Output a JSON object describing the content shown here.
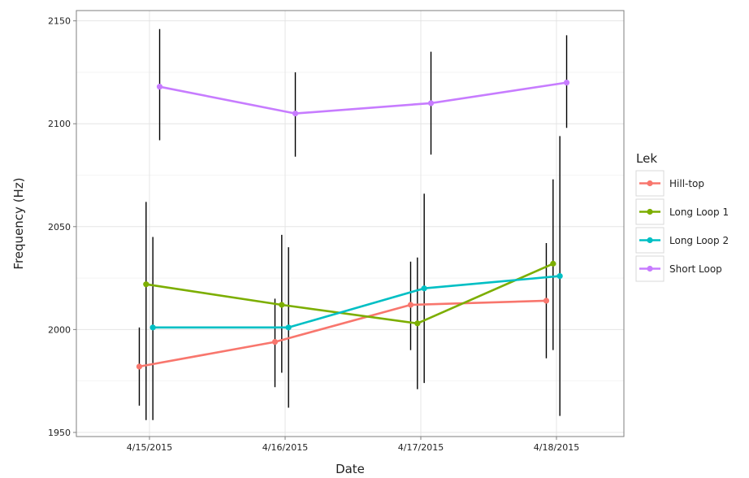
{
  "chart_data": {
    "type": "line",
    "xlabel": "Date",
    "ylabel": "Frequency (Hz)",
    "x": [
      "4/15/2015",
      "4/16/2015",
      "4/17/2015",
      "4/18/2015"
    ],
    "ylim": [
      1948,
      2155
    ],
    "yticks": [
      1950,
      2000,
      2050,
      2100,
      2150
    ],
    "grid": true,
    "legend": {
      "title": "Lek",
      "position": "right"
    },
    "series": [
      {
        "name": "Hill-top",
        "color": "#F8766D",
        "dodge": -0.075,
        "y": [
          1982,
          1994,
          2012,
          2014
        ],
        "lower": [
          1963,
          1972,
          1990,
          1986
        ],
        "upper": [
          2001,
          2015,
          2033,
          2042
        ]
      },
      {
        "name": "Long Loop 1",
        "color": "#7CAE00",
        "dodge": -0.025,
        "y": [
          2022,
          2012,
          2003,
          2032
        ],
        "lower": [
          1956,
          1979,
          1971,
          1990
        ],
        "upper": [
          2062,
          2046,
          2035,
          2073
        ]
      },
      {
        "name": "Long Loop 2",
        "color": "#00BFC4",
        "dodge": 0.025,
        "y": [
          2001,
          2001,
          2020,
          2026
        ],
        "lower": [
          1956,
          1962,
          1974,
          1958
        ],
        "upper": [
          2045,
          2040,
          2066,
          2094
        ]
      },
      {
        "name": "Short Loop",
        "color": "#C77CFF",
        "dodge": 0.075,
        "y": [
          2118,
          2105,
          2110,
          2120
        ],
        "lower": [
          2092,
          2084,
          2085,
          2098
        ],
        "upper": [
          2146,
          2125,
          2135,
          2143
        ]
      }
    ]
  }
}
